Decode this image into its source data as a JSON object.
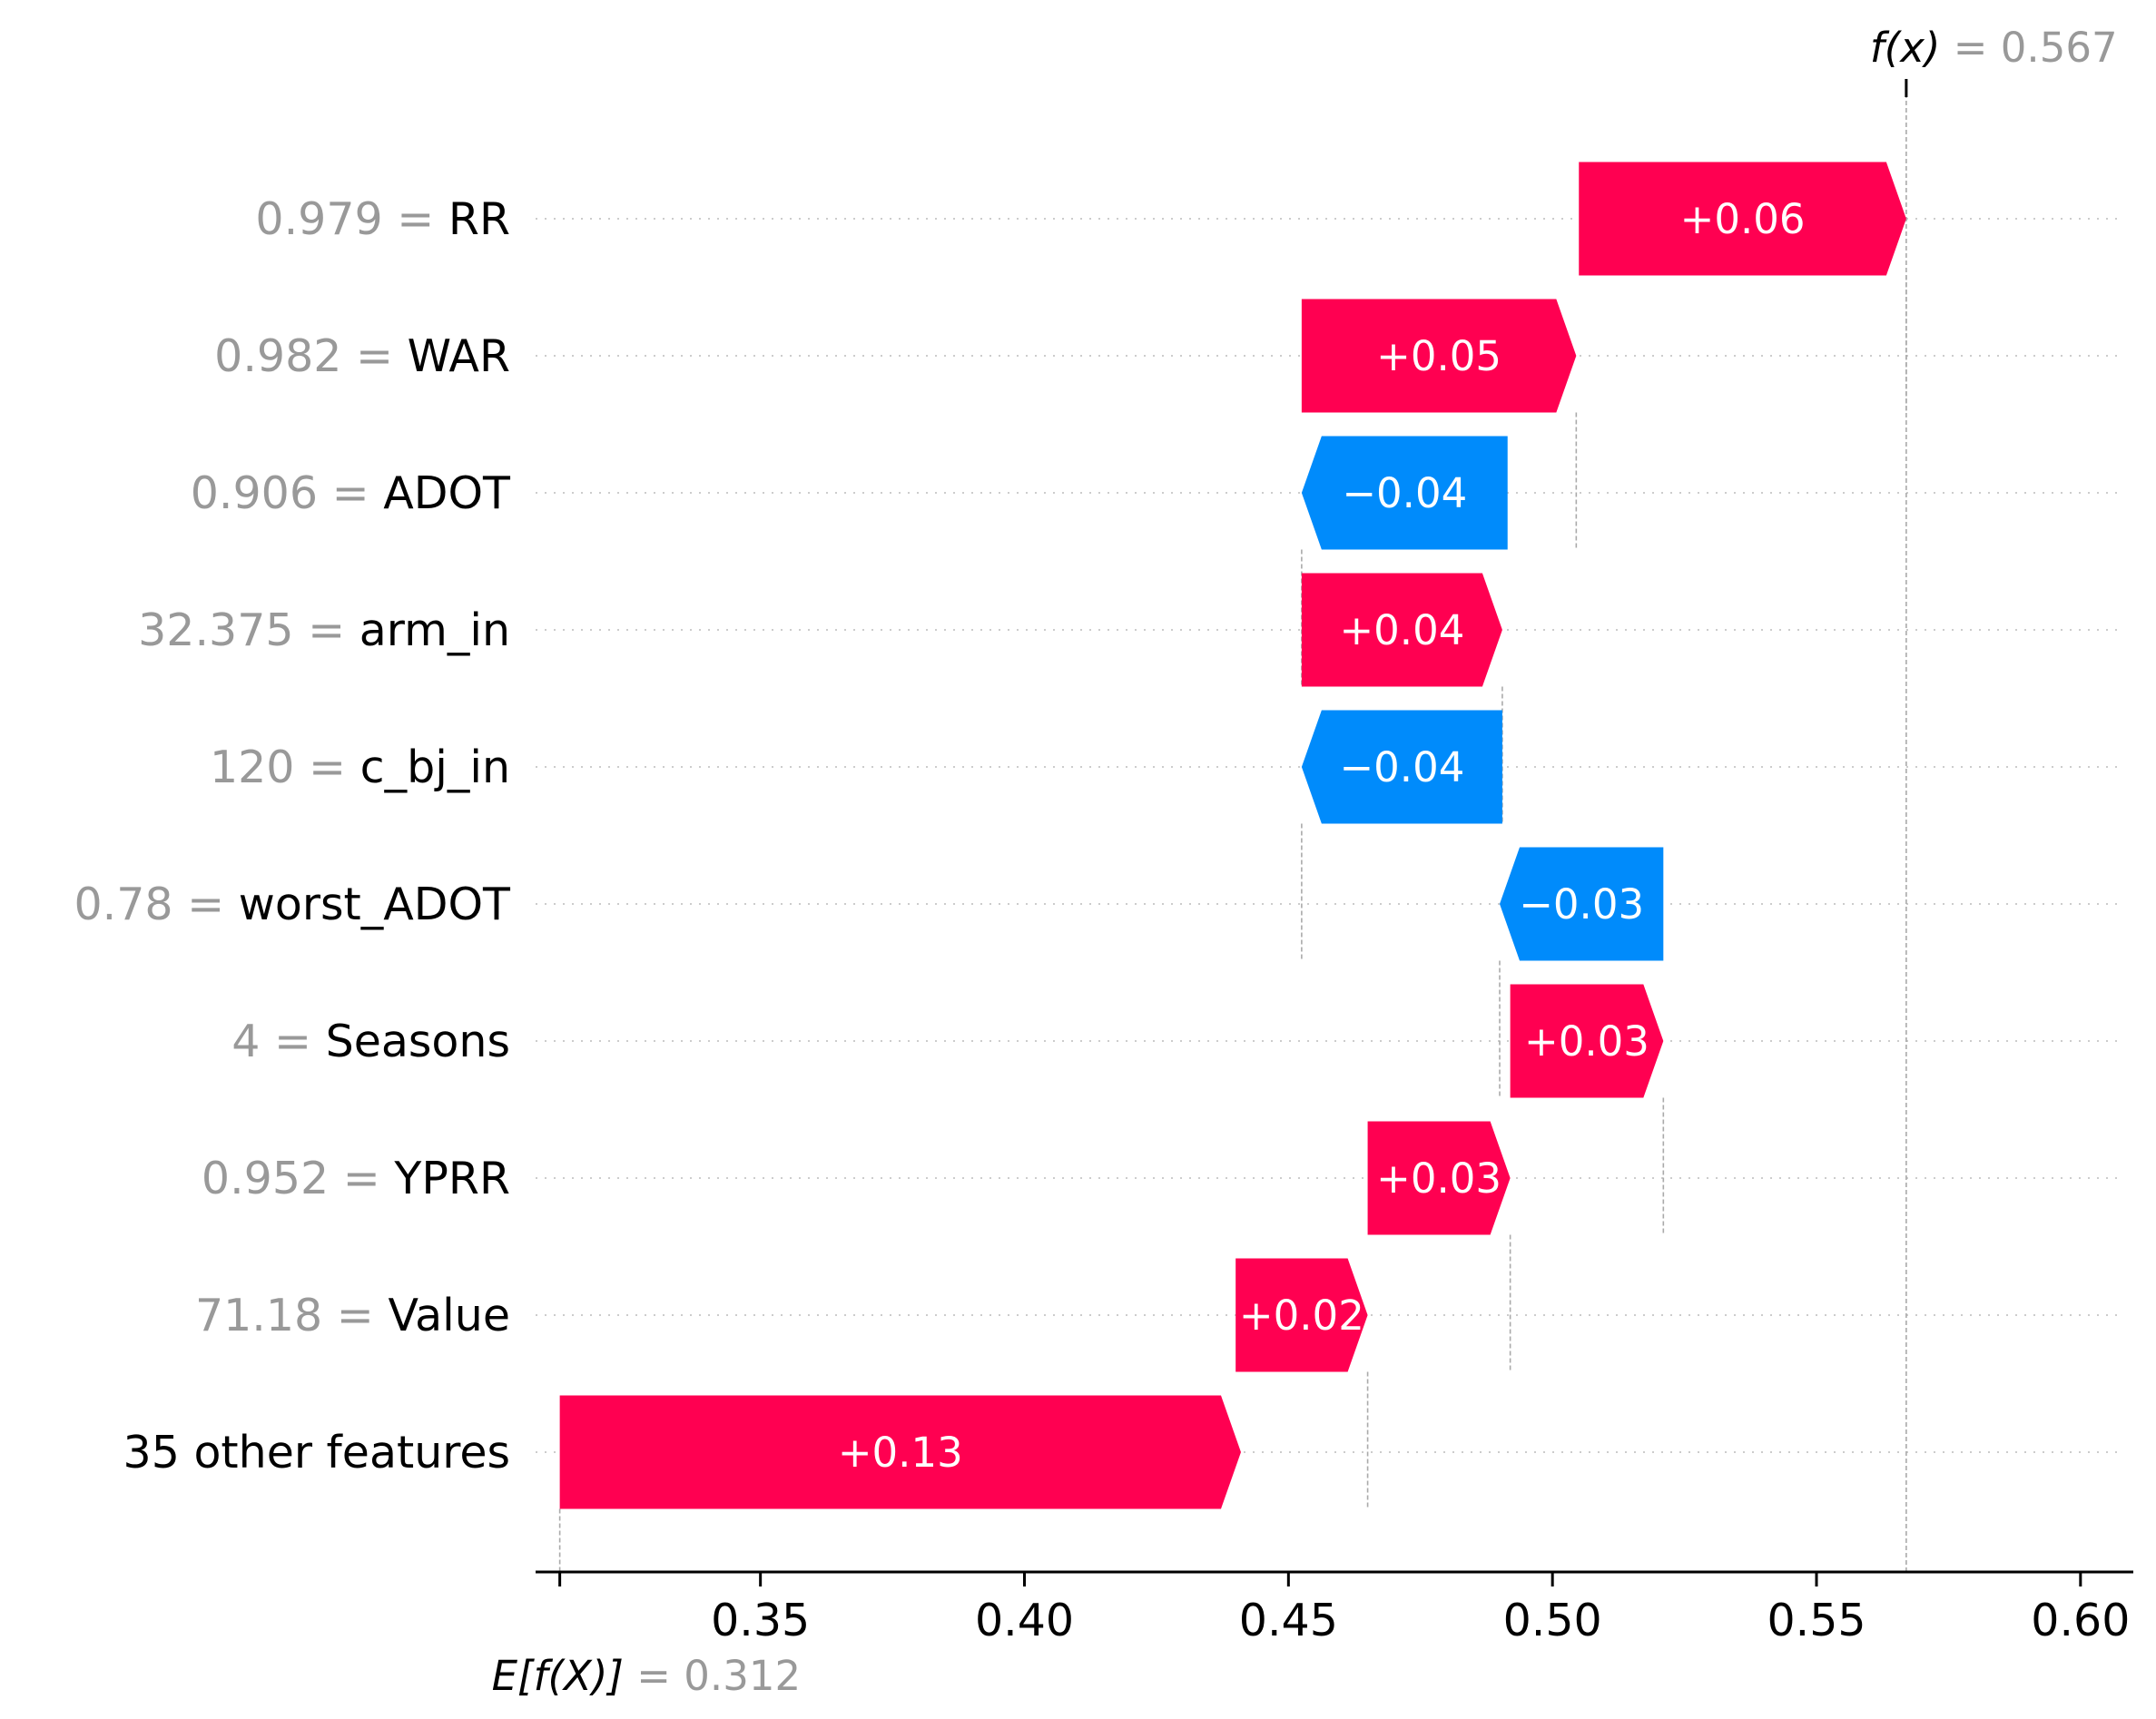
{
  "chart_data": {
    "type": "waterfall",
    "base_value": {
      "label_prefix": "E[f(X)]",
      "value": 0.312,
      "display": "= 0.312"
    },
    "output_value": {
      "label_prefix": "f(x)",
      "value": 0.567,
      "display": "= 0.567"
    },
    "rows": [
      {
        "value_text": "0.979",
        "feature": "RR",
        "contribution": 0.062,
        "label": "+0.06",
        "start": 0.505
      },
      {
        "value_text": "0.982",
        "feature": "WAR",
        "contribution": 0.052,
        "label": "+0.05",
        "start": 0.4525
      },
      {
        "value_text": "0.906",
        "feature": "ADOT",
        "contribution": -0.039,
        "label": "−0.04",
        "start": 0.4915
      },
      {
        "value_text": "32.375",
        "feature": "arm_in",
        "contribution": 0.038,
        "label": "+0.04",
        "start": 0.4525
      },
      {
        "value_text": "120",
        "feature": "c_bj_in",
        "contribution": -0.038,
        "label": "−0.04",
        "start": 0.4905
      },
      {
        "value_text": "0.78",
        "feature": "worst_ADOT",
        "contribution": -0.031,
        "label": "−0.03",
        "start": 0.521
      },
      {
        "value_text": "4",
        "feature": "Seasons",
        "contribution": 0.029,
        "label": "+0.03",
        "start": 0.492
      },
      {
        "value_text": "0.952",
        "feature": "YPRR",
        "contribution": 0.027,
        "label": "+0.03",
        "start": 0.465
      },
      {
        "value_text": "71.18",
        "feature": "Value",
        "contribution": 0.025,
        "label": "+0.02",
        "start": 0.44
      },
      {
        "value_text": "",
        "feature": "35 other features",
        "contribution": 0.129,
        "label": "+0.13",
        "start": 0.312
      }
    ],
    "x_ticks": [
      "0.35",
      "0.40",
      "0.45",
      "0.50",
      "0.55",
      "0.60"
    ],
    "xlim": [
      0.31,
      0.61
    ],
    "colors": {
      "positive": "#ff0051",
      "negative": "#008bfb",
      "value_gray": "#999999",
      "line_gray": "#aaaaaa"
    }
  }
}
